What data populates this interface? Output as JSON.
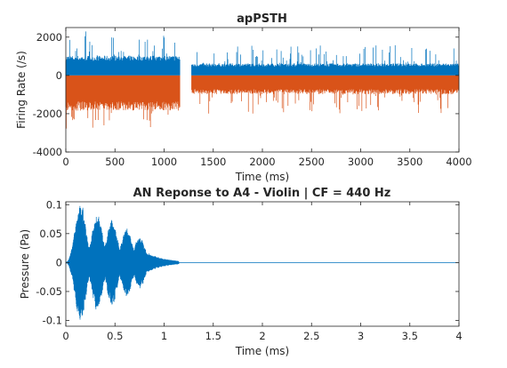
{
  "chart_data": [
    {
      "type": "line",
      "title": "apPSTH",
      "xlabel": "Time (ms)",
      "ylabel": "Firing Rate (/s)",
      "xlim": [
        0,
        4000
      ],
      "ylim": [
        -4000,
        2500
      ],
      "xticks": [
        0,
        500,
        1000,
        1500,
        2000,
        2500,
        3000,
        3500,
        4000
      ],
      "yticks": [
        -4000,
        -2000,
        0,
        2000
      ],
      "grid": false,
      "series": [
        {
          "color": "#0072bd",
          "segments": [
            {
              "x_range": [
                0,
                1160
              ],
              "baseline": 900,
              "spike_max": 2300
            },
            {
              "x_range": [
                1280,
                4000
              ],
              "baseline": 550,
              "spike_max": 1600
            }
          ]
        },
        {
          "color": "#d95319",
          "segments": [
            {
              "x_range": [
                0,
                1160
              ],
              "baseline": -1600,
              "spike_min": -2800
            },
            {
              "x_range": [
                1280,
                4000
              ],
              "baseline": -850,
              "spike_min": -2000
            }
          ]
        }
      ]
    },
    {
      "type": "line",
      "title": "AN Reponse to A4 - Violin | CF = 440 Hz",
      "xlabel": "Time (ms)",
      "ylabel": "Pressure (Pa)",
      "xlim": [
        0,
        4
      ],
      "ylim": [
        -0.11,
        0.105
      ],
      "xticks": [
        0,
        0.5,
        1,
        1.5,
        2,
        2.5,
        3,
        3.5,
        4
      ],
      "yticks": [
        -0.1,
        -0.05,
        0,
        0.05,
        0.1
      ],
      "grid": false,
      "series": [
        {
          "color": "#0072bd",
          "signal_end": 1.15,
          "peak_amplitude": 0.105,
          "envelope_peaks": [
            {
              "t": 0.15,
              "a": 0.105
            },
            {
              "t": 0.32,
              "a": 0.085
            },
            {
              "t": 0.47,
              "a": 0.075
            },
            {
              "t": 0.62,
              "a": 0.06
            },
            {
              "t": 0.75,
              "a": 0.045
            }
          ]
        }
      ]
    }
  ]
}
